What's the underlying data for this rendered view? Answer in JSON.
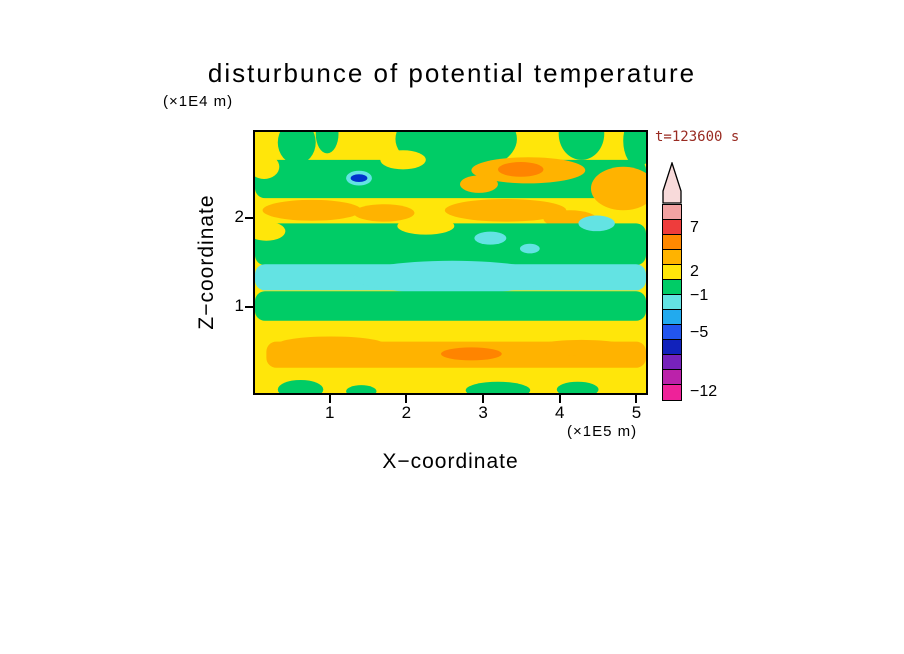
{
  "title": "disturbunce of potential temperature",
  "labels": {
    "y_units": "(×1E4 m)",
    "x_units": "(×1E5 m)",
    "xlabel": "X−coordinate",
    "ylabel": "Z−coordinate",
    "time": "t=123600 s"
  },
  "chart_data": {
    "type": "heatmap",
    "title": "disturbunce of potential temperature",
    "xlabel": "X-coordinate",
    "ylabel": "Z-coordinate",
    "x_units": "×1E5 m",
    "y_units": "×1E4 m",
    "time_annotation": "t=123600 s",
    "xlim": [
      0,
      5.15
    ],
    "ylim": [
      0,
      3.0
    ],
    "x_ticks": [
      1,
      2,
      3,
      4,
      5
    ],
    "y_ticks": [
      1,
      2
    ],
    "grid": false,
    "legend_position": "right",
    "field_description": "Horizontally layered disturbance field: alternating yellow/orange positive bands and green/cyan negative bands; deep-blue minimum near x=1.35 z=2.45; orange maxima bands near z=2.5, z=2.1 and z=0.45; cyan negative band near z=1.3.",
    "background_color": "#ffe60a",
    "palette": {
      "yellow": "#ffe60a",
      "green": "#00cc66",
      "cyan": "#63e3e3",
      "orange": "#ffb300",
      "dark_orange": "#ff8400",
      "blue": "#0033cc"
    },
    "features": [
      {
        "shape": "ellipse",
        "x": 0.55,
        "z": 2.88,
        "w": 0.5,
        "h": 0.5,
        "color": "green"
      },
      {
        "shape": "ellipse",
        "x": 0.95,
        "z": 2.98,
        "w": 0.3,
        "h": 0.45,
        "color": "green"
      },
      {
        "shape": "ellipse",
        "x": 2.65,
        "z": 2.92,
        "w": 1.6,
        "h": 0.8,
        "color": "green"
      },
      {
        "shape": "ellipse",
        "x": 4.3,
        "z": 2.98,
        "w": 0.6,
        "h": 0.6,
        "color": "green"
      },
      {
        "shape": "ellipse",
        "x": 5.05,
        "z": 2.9,
        "w": 0.4,
        "h": 0.6,
        "color": "green"
      },
      {
        "shape": "rect",
        "x": 2.575,
        "z": 2.46,
        "w": 5.15,
        "h": 0.44,
        "color": "green"
      },
      {
        "shape": "ellipse",
        "x": 0.12,
        "z": 2.6,
        "w": 0.4,
        "h": 0.28,
        "color": "yellow"
      },
      {
        "shape": "ellipse",
        "x": 1.95,
        "z": 2.68,
        "w": 0.6,
        "h": 0.22,
        "color": "yellow"
      },
      {
        "shape": "ellipse",
        "x": 3.6,
        "z": 2.56,
        "w": 1.5,
        "h": 0.3,
        "color": "orange"
      },
      {
        "shape": "ellipse",
        "x": 3.5,
        "z": 2.57,
        "w": 0.6,
        "h": 0.17,
        "color": "dark_orange"
      },
      {
        "shape": "ellipse",
        "x": 4.85,
        "z": 2.35,
        "w": 0.85,
        "h": 0.5,
        "color": "orange"
      },
      {
        "shape": "ellipse",
        "x": 2.95,
        "z": 2.4,
        "w": 0.5,
        "h": 0.2,
        "color": "orange"
      },
      {
        "shape": "ellipse",
        "x": 1.37,
        "z": 2.47,
        "w": 0.34,
        "h": 0.17,
        "color": "cyan"
      },
      {
        "shape": "ellipse",
        "x": 1.37,
        "z": 2.47,
        "w": 0.22,
        "h": 0.09,
        "color": "blue"
      },
      {
        "shape": "ellipse",
        "x": 0.75,
        "z": 2.1,
        "w": 1.3,
        "h": 0.24,
        "color": "orange"
      },
      {
        "shape": "ellipse",
        "x": 1.7,
        "z": 2.07,
        "w": 0.8,
        "h": 0.2,
        "color": "orange"
      },
      {
        "shape": "ellipse",
        "x": 3.3,
        "z": 2.1,
        "w": 1.6,
        "h": 0.26,
        "color": "orange"
      },
      {
        "shape": "ellipse",
        "x": 4.15,
        "z": 2.0,
        "w": 0.7,
        "h": 0.2,
        "color": "orange"
      },
      {
        "shape": "rect",
        "x": 2.575,
        "z": 1.71,
        "w": 5.15,
        "h": 0.48,
        "color": "green"
      },
      {
        "shape": "ellipse",
        "x": 2.25,
        "z": 1.92,
        "w": 0.75,
        "h": 0.2,
        "color": "yellow"
      },
      {
        "shape": "ellipse",
        "x": 0.15,
        "z": 1.86,
        "w": 0.5,
        "h": 0.22,
        "color": "yellow"
      },
      {
        "shape": "ellipse",
        "x": 3.1,
        "z": 1.78,
        "w": 0.42,
        "h": 0.15,
        "color": "cyan"
      },
      {
        "shape": "ellipse",
        "x": 4.5,
        "z": 1.95,
        "w": 0.48,
        "h": 0.18,
        "color": "cyan"
      },
      {
        "shape": "ellipse",
        "x": 3.62,
        "z": 1.66,
        "w": 0.26,
        "h": 0.11,
        "color": "cyan"
      },
      {
        "shape": "rect",
        "x": 2.575,
        "z": 1.33,
        "w": 5.15,
        "h": 0.3,
        "color": "cyan"
      },
      {
        "shape": "ellipse",
        "x": 2.6,
        "z": 1.33,
        "w": 2.6,
        "h": 0.38,
        "color": "cyan"
      },
      {
        "shape": "rect",
        "x": 2.575,
        "z": 1.0,
        "w": 5.15,
        "h": 0.34,
        "color": "green"
      },
      {
        "shape": "rect",
        "x": 2.65,
        "z": 0.44,
        "w": 5.0,
        "h": 0.3,
        "color": "orange"
      },
      {
        "shape": "ellipse",
        "x": 1.0,
        "z": 0.56,
        "w": 1.4,
        "h": 0.18,
        "color": "orange"
      },
      {
        "shape": "ellipse",
        "x": 4.3,
        "z": 0.52,
        "w": 1.3,
        "h": 0.18,
        "color": "orange"
      },
      {
        "shape": "ellipse",
        "x": 2.85,
        "z": 0.45,
        "w": 0.8,
        "h": 0.15,
        "color": "dark_orange"
      },
      {
        "shape": "ellipse",
        "x": 0.6,
        "z": 0.04,
        "w": 0.6,
        "h": 0.22,
        "color": "green"
      },
      {
        "shape": "ellipse",
        "x": 1.4,
        "z": 0.02,
        "w": 0.4,
        "h": 0.14,
        "color": "green"
      },
      {
        "shape": "ellipse",
        "x": 3.2,
        "z": 0.03,
        "w": 0.85,
        "h": 0.2,
        "color": "green"
      },
      {
        "shape": "ellipse",
        "x": 4.25,
        "z": 0.04,
        "w": 0.55,
        "h": 0.18,
        "color": "green"
      }
    ],
    "colorbar": {
      "orientation": "vertical",
      "arrow_color": "#f8dada",
      "tick_labels": [
        "7",
        "2",
        "−1",
        "−5",
        "−12"
      ],
      "segments": [
        "#f2a2a2",
        "#ee3c3c",
        "#ff8800",
        "#ffb300",
        "#ffe60a",
        "#00cc66",
        "#63e3e3",
        "#22aaee",
        "#2255ee",
        "#1122bb",
        "#7722bb",
        "#bb22aa",
        "#ee2299"
      ],
      "labels": [
        {
          "text": "7",
          "pos": 0.118
        },
        {
          "text": "2",
          "pos": 0.344
        },
        {
          "text": "−1",
          "pos": 0.467
        },
        {
          "text": "−5",
          "pos": 0.656
        },
        {
          "text": "−12",
          "pos": 0.959
        }
      ]
    }
  }
}
